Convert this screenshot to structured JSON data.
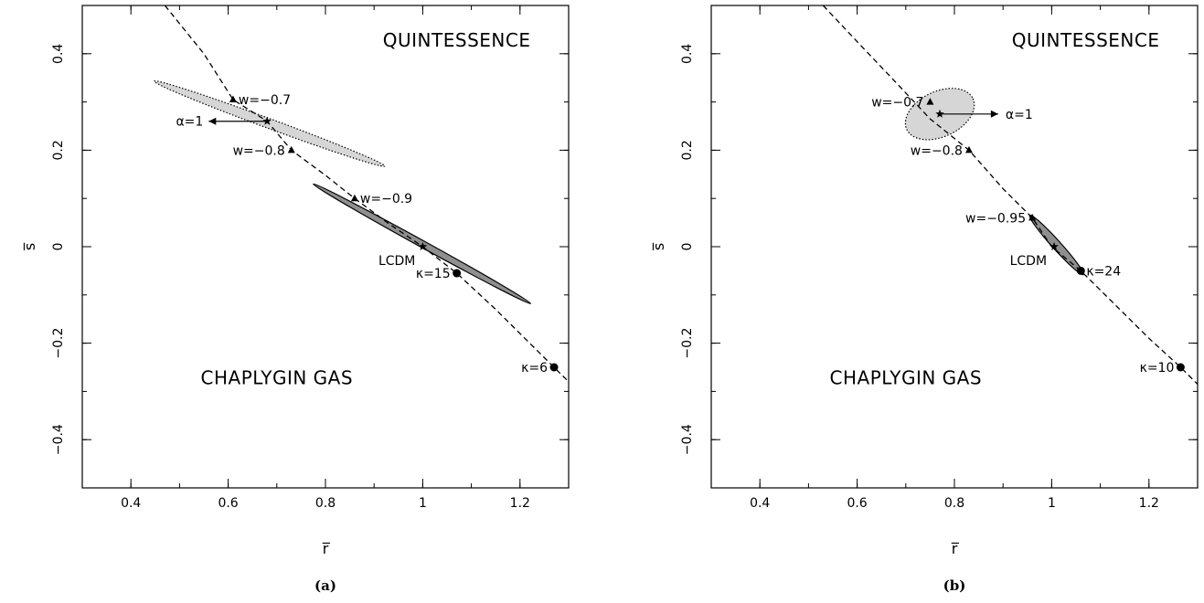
{
  "chart_data": [
    {
      "type": "scatter",
      "panel_label": "(a)",
      "xlabel": "r̅",
      "ylabel": "s̅",
      "xlim": [
        0.3,
        1.3
      ],
      "ylim": [
        -0.5,
        0.5
      ],
      "x_ticks": [
        0.4,
        0.6,
        0.8,
        1,
        1.2
      ],
      "x_tick_labels": [
        "0.4",
        "0.6",
        "0.8",
        "1",
        "1.2"
      ],
      "y_ticks": [
        -0.4,
        -0.2,
        0,
        0.2,
        0.4
      ],
      "y_tick_labels": [
        "−0.4",
        "−0.2",
        "0",
        "0.2",
        "0.4"
      ],
      "grid": false,
      "region_labels": [
        {
          "text": "QUINTESSENCE",
          "x": 1.07,
          "y": 0.415
        },
        {
          "text": "CHAPLYGIN GAS",
          "x": 0.7,
          "y": -0.285
        }
      ],
      "curve": {
        "style": "dashed",
        "x": [
          0.47,
          0.55,
          0.61,
          0.68,
          0.73,
          0.8,
          0.86,
          0.93,
          1.0,
          1.07,
          1.15,
          1.21,
          1.27,
          1.3
        ],
        "y": [
          0.5,
          0.4,
          0.305,
          0.26,
          0.2,
          0.148,
          0.1,
          0.048,
          0.0,
          -0.055,
          -0.13,
          -0.19,
          -0.25,
          -0.28
        ]
      },
      "regions": [
        {
          "shade": "light",
          "outline": "dotted",
          "x": [
            0.448,
            0.922
          ],
          "y": [
            0.343,
            0.167
          ],
          "half_width": 0.01
        },
        {
          "shade": "dark",
          "outline": "solid",
          "x": [
            0.775,
            1.222
          ],
          "y": [
            0.13,
            -0.118
          ],
          "half_width": 0.007
        }
      ],
      "points": [
        {
          "marker": "triangle",
          "x": 0.61,
          "y": 0.305,
          "label": "w=−0.7",
          "side": "right"
        },
        {
          "marker": "triangle",
          "x": 0.73,
          "y": 0.2,
          "label": "w=−0.8",
          "side": "left"
        },
        {
          "marker": "triangle",
          "x": 0.86,
          "y": 0.1,
          "label": "w=−0.9",
          "side": "right"
        },
        {
          "marker": "star",
          "x": 0.68,
          "y": 0.26,
          "label": "",
          "side": "right"
        },
        {
          "marker": "star",
          "x": 1.0,
          "y": 0.0,
          "label": "LCDM",
          "side": "below-left"
        },
        {
          "marker": "circle",
          "x": 1.07,
          "y": -0.055,
          "label": "κ=15",
          "side": "left"
        },
        {
          "marker": "circle",
          "x": 1.27,
          "y": -0.25,
          "label": "κ=6",
          "side": "left"
        }
      ],
      "arrow": {
        "label": "α=1",
        "x_from": 0.68,
        "x_to": 0.56,
        "y": 0.26
      }
    },
    {
      "type": "scatter",
      "panel_label": "(b)",
      "xlabel": "r̅",
      "ylabel": "s̅",
      "xlim": [
        0.3,
        1.3
      ],
      "ylim": [
        -0.5,
        0.5
      ],
      "x_ticks": [
        0.4,
        0.6,
        0.8,
        1,
        1.2
      ],
      "x_tick_labels": [
        "0.4",
        "0.6",
        "0.8",
        "1",
        "1.2"
      ],
      "y_ticks": [
        -0.4,
        -0.2,
        0,
        0.2,
        0.4
      ],
      "y_tick_labels": [
        "−0.4",
        "−0.2",
        "0",
        "0.2",
        "0.4"
      ],
      "grid": false,
      "region_labels": [
        {
          "text": "QUINTESSENCE",
          "x": 1.07,
          "y": 0.415
        },
        {
          "text": "CHAPLYGIN GAS",
          "x": 0.7,
          "y": -0.285
        }
      ],
      "curve": {
        "style": "dashed",
        "x": [
          0.53,
          0.6,
          0.68,
          0.75,
          0.83,
          0.9,
          0.96,
          1.0,
          1.06,
          1.13,
          1.2,
          1.265,
          1.3
        ],
        "y": [
          0.5,
          0.425,
          0.34,
          0.265,
          0.2,
          0.12,
          0.06,
          0.0,
          -0.05,
          -0.12,
          -0.19,
          -0.25,
          -0.285
        ]
      },
      "regions": [
        {
          "shade": "light",
          "outline": "dotted",
          "ellipse": true,
          "cx": 0.77,
          "cy": 0.275,
          "rx": 0.075,
          "ry": 0.047,
          "angle_deg": -25
        },
        {
          "shade": "dark",
          "outline": "solid",
          "x": [
            0.955,
            1.065
          ],
          "y": [
            0.065,
            -0.058
          ],
          "half_width": 0.009
        }
      ],
      "points": [
        {
          "marker": "triangle",
          "x": 0.75,
          "y": 0.3,
          "label": "w=−0.7",
          "side": "left"
        },
        {
          "marker": "triangle",
          "x": 0.83,
          "y": 0.2,
          "label": "w=−0.8",
          "side": "left"
        },
        {
          "marker": "triangle",
          "x": 0.96,
          "y": 0.06,
          "label": "w=−0.95",
          "side": "left"
        },
        {
          "marker": "star",
          "x": 0.77,
          "y": 0.275,
          "label": "",
          "side": "right"
        },
        {
          "marker": "star",
          "x": 1.005,
          "y": 0.0,
          "label": "LCDM",
          "side": "below-left"
        },
        {
          "marker": "circle",
          "x": 1.06,
          "y": -0.05,
          "label": "κ=24",
          "side": "right"
        },
        {
          "marker": "circle",
          "x": 1.265,
          "y": -0.25,
          "label": "κ=10",
          "side": "left"
        }
      ],
      "arrow": {
        "label": "α=1",
        "x_from": 0.77,
        "x_to": 0.89,
        "y": 0.275
      }
    }
  ],
  "colors": {
    "light_region": "#d6d6d6",
    "dark_region": "#8f8f8f",
    "ink": "#000000"
  }
}
